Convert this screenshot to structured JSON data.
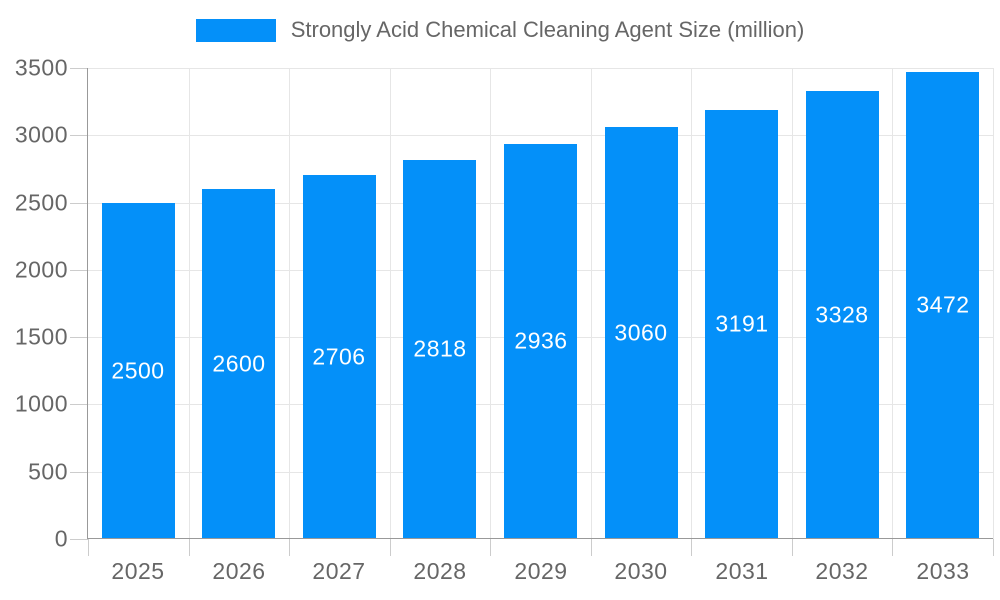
{
  "legend": {
    "label": "Strongly Acid Chemical Cleaning Agent Size (million)"
  },
  "chart_data": {
    "type": "bar",
    "title": "Strongly Acid Chemical Cleaning Agent Size (million)",
    "categories": [
      "2025",
      "2026",
      "2027",
      "2028",
      "2029",
      "2030",
      "2031",
      "2032",
      "2033"
    ],
    "series": [
      {
        "name": "Strongly Acid Chemical Cleaning Agent Size (million)",
        "values": [
          2500,
          2600,
          2706,
          2818,
          2936,
          3060,
          3191,
          3328,
          3472
        ]
      }
    ],
    "bar_value_labels": [
      "2500",
      "2600",
      "2706",
      "2818",
      "2936",
      "3060",
      "3191",
      "3328",
      "3472"
    ],
    "xlabel": "",
    "ylabel": "",
    "ylim": [
      0,
      3500
    ],
    "ytick_step": 500,
    "yticks": [
      0,
      500,
      1000,
      1500,
      2000,
      2500,
      3000,
      3500
    ],
    "grid": true,
    "legend_position": "top",
    "colors": {
      "bar": "#0490f9",
      "bar_label": "#ffffff",
      "axis_text": "#666666",
      "grid_line": "#e6e6e6",
      "axis_line": "#999999",
      "tick_line": "#cccccc",
      "background": "#ffffff"
    }
  }
}
